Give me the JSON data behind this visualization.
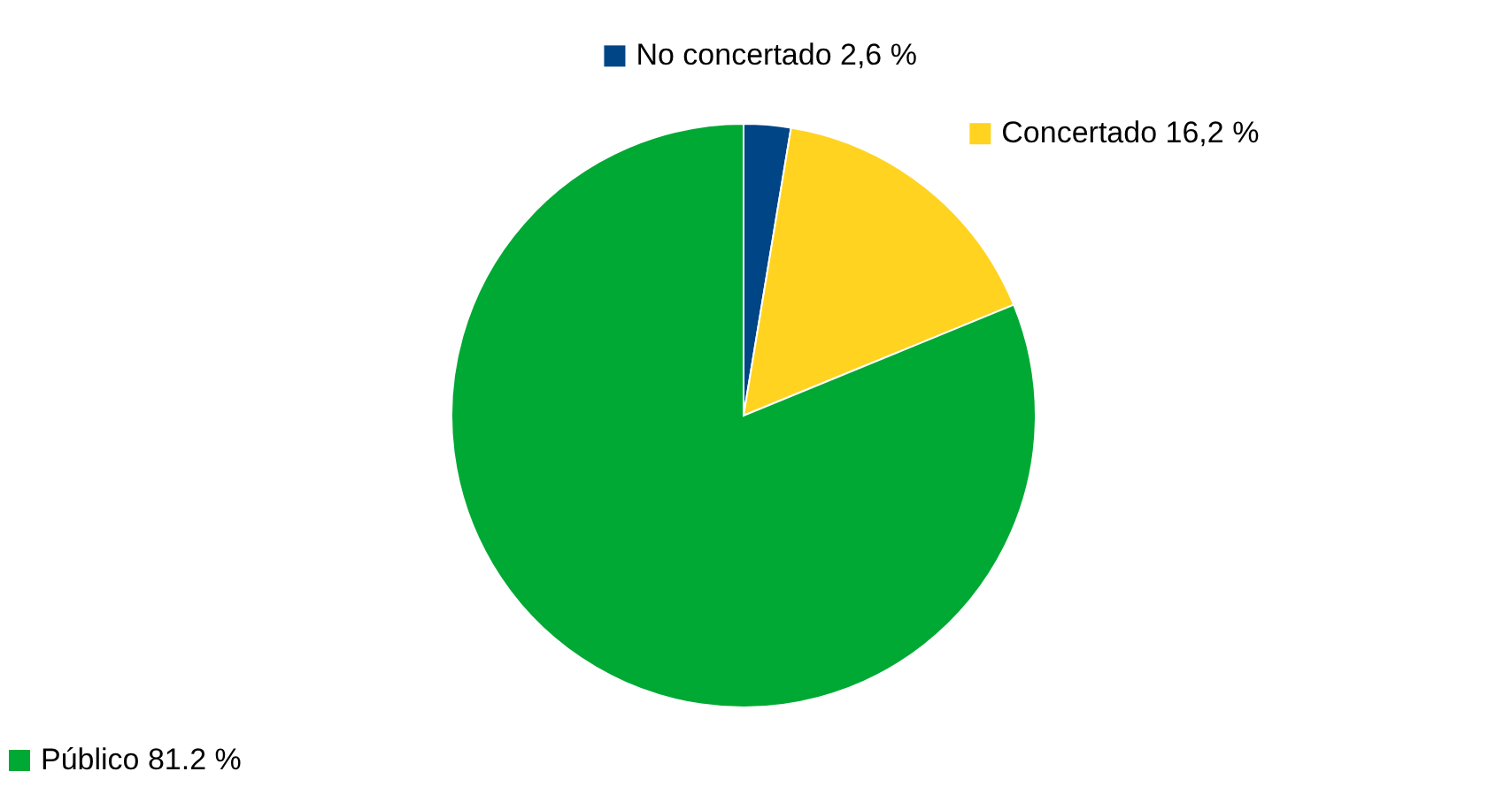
{
  "chart_data": {
    "type": "pie",
    "categories": [
      "No concertado",
      "Concertado",
      "Público"
    ],
    "values": [
      2.6,
      16.2,
      81.2
    ],
    "colors": [
      "#004586",
      "#ffd320",
      "#00a933"
    ],
    "value_labels": [
      "2,6 %",
      "16,2 %",
      "81.2 %"
    ],
    "legend": "top left"
  }
}
